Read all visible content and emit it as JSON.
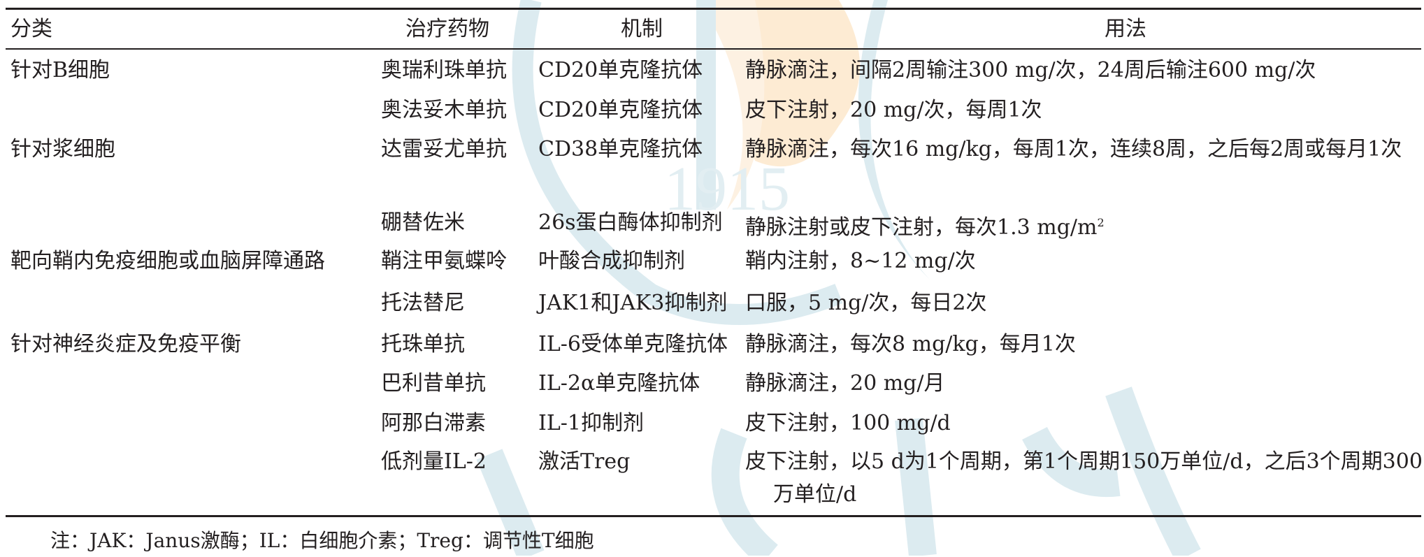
{
  "table": {
    "headers": {
      "category": "分类",
      "drug": "治疗药物",
      "mechanism": "机制",
      "usage": "用法"
    },
    "rows": [
      {
        "category": "针对B细胞",
        "drug": "奥瑞利珠单抗",
        "mechanism": "CD20单克隆抗体",
        "usage": "静脉滴注，间隔2周输注300 mg/次，24周后输注600 mg/次"
      },
      {
        "category": "",
        "drug": "奥法妥木单抗",
        "mechanism": "CD20单克隆抗体",
        "usage": "皮下注射，20 mg/次，每周1次"
      },
      {
        "category": "针对浆细胞",
        "drug": "达雷妥尤单抗",
        "mechanism": "CD38单克隆抗体",
        "usage": "静脉滴注，每次16 mg/kg，每周1次，连续8周，之后每2周或每月1次"
      },
      {
        "category": "",
        "drug": "硼替佐米",
        "mechanism": "26s蛋白酶体抑制剂",
        "usage": "静脉注射或皮下注射，每次1.3 mg/m",
        "usage_sup": "2"
      },
      {
        "category": "靶向鞘内免疫细胞或血脑屏障通路",
        "drug": "鞘注甲氨蝶呤",
        "mechanism": "叶酸合成抑制剂",
        "usage": "鞘内注射，8~12 mg/次"
      },
      {
        "category": "",
        "drug": "托法替尼",
        "mechanism": "JAK1和JAK3抑制剂",
        "usage": "口服，5 mg/次，每日2次"
      },
      {
        "category": "针对神经炎症及免疫平衡",
        "drug": "托珠单抗",
        "mechanism": "IL-6受体单克隆抗体",
        "usage": "静脉滴注，每次8 mg/kg，每月1次"
      },
      {
        "category": "",
        "drug": "巴利昔单抗",
        "mechanism": "IL-2α单克隆抗体",
        "usage": "静脉滴注，20 mg/月"
      },
      {
        "category": "",
        "drug": "阿那白滞素",
        "mechanism": "IL-1抑制剂",
        "usage": "皮下注射，100 mg/d"
      },
      {
        "category": "",
        "drug": "低剂量IL-2",
        "mechanism": "激活Treg",
        "usage": "皮下注射，以5 d为1个周期，第1个周期150万单位/d，之后3个周期300万单位/d"
      }
    ]
  },
  "note": "注：JAK：Janus激酶；IL：白细胞介素；Treg：调节性T细胞",
  "watermark": {
    "text": "1915",
    "colors": {
      "blue": "#dcebf0",
      "orange": "#fdebd3"
    }
  }
}
